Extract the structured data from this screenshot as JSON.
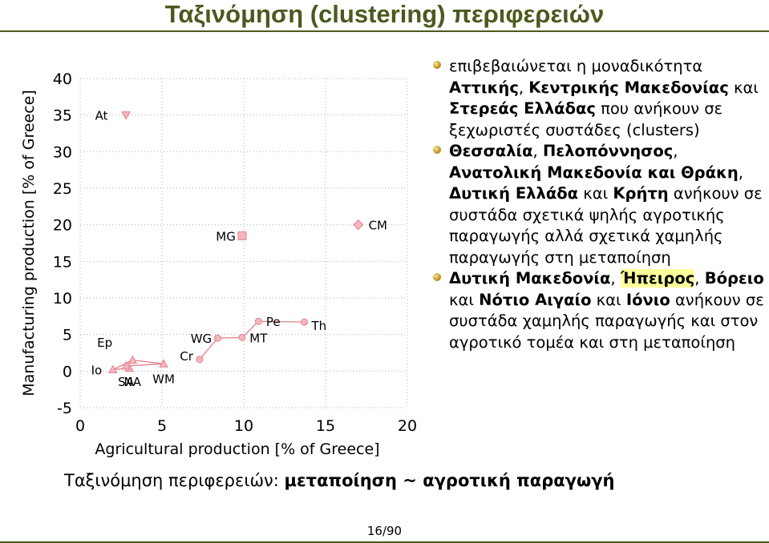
{
  "slide": {
    "title": "Ταξινόμηση (clustering) περιφερειών",
    "caption_prefix": "Ταξινόμηση περιφερειών: ",
    "caption_bold": "μεταποίηση ~ αγροτική παραγωγή",
    "page_number": "16/90"
  },
  "bullets": [
    {
      "parts": [
        {
          "t": "επιβεβαιώνεται η μοναδικότητα ",
          "b": false
        },
        {
          "t": "Αττικής",
          "b": true
        },
        {
          "t": ", ",
          "b": false
        },
        {
          "t": "Κεντρικής Μακεδονίας",
          "b": true
        },
        {
          "t": " και ",
          "b": false
        },
        {
          "t": "Στερεάς Ελλάδας",
          "b": true
        },
        {
          "t": " που ανήκουν σε ξεχωριστές συστάδες (clusters)",
          "b": false
        }
      ]
    },
    {
      "parts": [
        {
          "t": "Θεσσαλία",
          "b": true
        },
        {
          "t": ", ",
          "b": false
        },
        {
          "t": "Πελοπόννησος",
          "b": true
        },
        {
          "t": ", ",
          "b": false
        },
        {
          "t": "Ανατολική Μακεδονία και Θράκη",
          "b": true
        },
        {
          "t": ", ",
          "b": false
        },
        {
          "t": "Δυτική Ελλάδα",
          "b": true
        },
        {
          "t": " και ",
          "b": false
        },
        {
          "t": "Κρήτη",
          "b": true
        },
        {
          "t": " ανήκουν σε συστάδα σχετικά ψηλής αγροτικής παραγωγής αλλά σχετικά χαμηλής παραγωγής στη μεταποίηση",
          "b": false
        }
      ]
    },
    {
      "parts": [
        {
          "t": "Δυτική Μακεδονία",
          "b": true
        },
        {
          "t": ", ",
          "b": false
        },
        {
          "t": "Ήπειρος",
          "b": true,
          "hl": true
        },
        {
          "t": ", ",
          "b": false
        },
        {
          "t": "Βόρειο",
          "b": true
        },
        {
          "t": " και ",
          "b": false
        },
        {
          "t": "Νότιο Αιγαίο",
          "b": true
        },
        {
          "t": " και ",
          "b": false
        },
        {
          "t": "Ιόνιο",
          "b": true
        },
        {
          "t": " ανήκουν σε συστάδα χαμηλής παραγωγής και στον αγροτικό τομέα και στη μεταποίηση",
          "b": false
        }
      ]
    }
  ],
  "chart_data": {
    "type": "scatter",
    "xlabel": "Agricultural production [% of Greece]",
    "ylabel": "Manufacturing production [% of Greece]",
    "xlim": [
      0,
      20
    ],
    "ylim": [
      -5,
      40
    ],
    "xticks": [
      0,
      5,
      10,
      15,
      20
    ],
    "yticks": [
      -5,
      0,
      5,
      10,
      15,
      20,
      25,
      30,
      35,
      40
    ],
    "grid": "dotted",
    "colors": {
      "marker_fill": "#f4b6bd",
      "marker_stroke": "#e5808c",
      "line": "#e5808c",
      "axis": "#000000"
    },
    "points": [
      {
        "label": "At",
        "x": 2.8,
        "y": 35,
        "marker": "triangle-down",
        "lx": -1.5,
        "ly": 0
      },
      {
        "label": "Ep",
        "x": 3.2,
        "y": 1.5,
        "marker": "triangle",
        "lx": -1.7,
        "ly": 2.5
      },
      {
        "label": "Io",
        "x": 2.0,
        "y": 0.2,
        "marker": "triangle",
        "lx": -1.0,
        "ly": 0
      },
      {
        "label": "SA",
        "x": 3.0,
        "y": 0.4,
        "marker": "triangle",
        "lx": -0.2,
        "ly": -1.8
      },
      {
        "label": "NA",
        "x": 2.8,
        "y": 0.7,
        "marker": "triangle",
        "lx": 0.4,
        "ly": -2.1
      },
      {
        "label": "WM",
        "x": 5.1,
        "y": 1.0,
        "marker": "triangle",
        "lx": 0,
        "ly": -2.0
      },
      {
        "label": "Cr",
        "x": 7.3,
        "y": 1.6,
        "marker": "circle",
        "lx": -0.8,
        "ly": 0.5
      },
      {
        "label": "WG",
        "x": 8.4,
        "y": 4.5,
        "marker": "circle",
        "lx": -1.0,
        "ly": 0
      },
      {
        "label": "MT",
        "x": 9.9,
        "y": 4.6,
        "marker": "circle",
        "lx": 1.0,
        "ly": 0
      },
      {
        "label": "Pe",
        "x": 10.9,
        "y": 6.8,
        "marker": "circle",
        "lx": 0.9,
        "ly": 0
      },
      {
        "label": "Th",
        "x": 13.7,
        "y": 6.7,
        "marker": "circle",
        "lx": 0.9,
        "ly": -0.4
      },
      {
        "label": "MG",
        "x": 9.9,
        "y": 18.5,
        "marker": "square",
        "lx": -1.0,
        "ly": 0
      },
      {
        "label": "CM",
        "x": 17.0,
        "y": 20.0,
        "marker": "diamond",
        "lx": 1.2,
        "ly": 0
      }
    ],
    "cluster_lines": [
      [
        "Io",
        "Ep"
      ],
      [
        "Io",
        "SA"
      ],
      [
        "SA",
        "NA"
      ],
      [
        "NA",
        "WM"
      ],
      [
        "WM",
        "Ep"
      ],
      [
        "Cr",
        "WG"
      ],
      [
        "WG",
        "MT"
      ],
      [
        "MT",
        "Pe"
      ],
      [
        "Pe",
        "Th"
      ]
    ]
  }
}
